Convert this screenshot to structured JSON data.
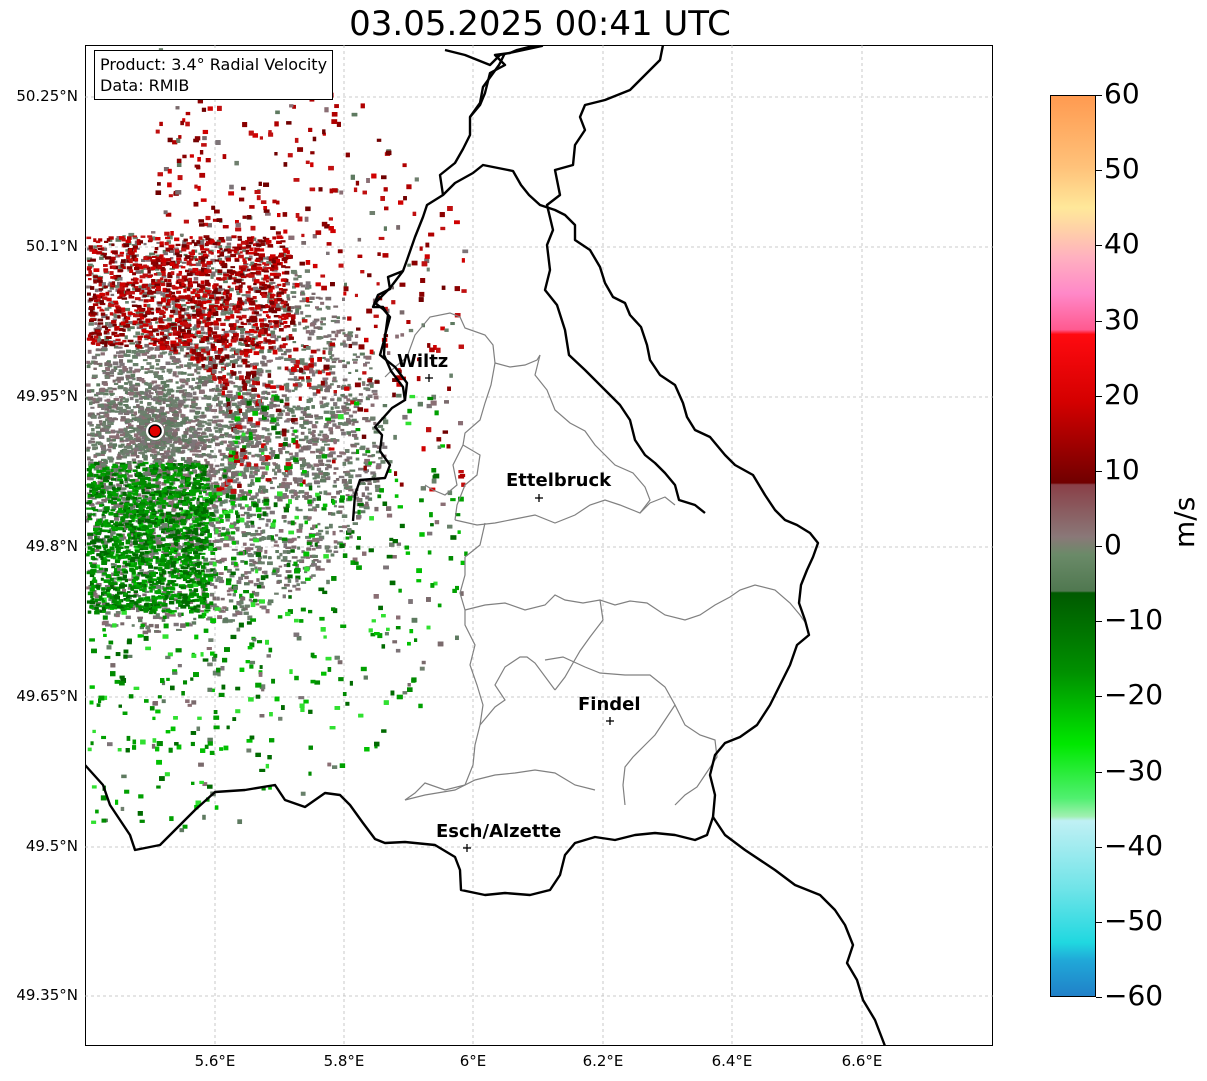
{
  "title": "03.05.2025 00:41 UTC",
  "info": {
    "product": "Product: 3.4° Radial Velocity",
    "source": "Data: RMIB"
  },
  "axes": {
    "lon_ticks": [
      "5.6°E",
      "5.8°E",
      "6°E",
      "6.2°E",
      "6.4°E",
      "6.6°E"
    ],
    "lat_ticks": [
      "50.25°N",
      "50.1°N",
      "49.95°N",
      "49.8°N",
      "49.65°N",
      "49.5°N",
      "49.35°N"
    ]
  },
  "colorbar": {
    "label": "m/s",
    "ticks": [
      "60",
      "50",
      "40",
      "30",
      "20",
      "10",
      "0",
      "−10",
      "−20",
      "−30",
      "−40",
      "−50",
      "−60"
    ],
    "range": [
      -60,
      60
    ]
  },
  "cities": [
    {
      "name": "Wiltz"
    },
    {
      "name": "Ettelbruck"
    },
    {
      "name": "Findel"
    },
    {
      "name": "Esch/Alzette"
    }
  ],
  "colors": {
    "border": "#000000",
    "canton": "#808080",
    "grid": "#bbbbbb",
    "radar_site": "#ff0000"
  }
}
